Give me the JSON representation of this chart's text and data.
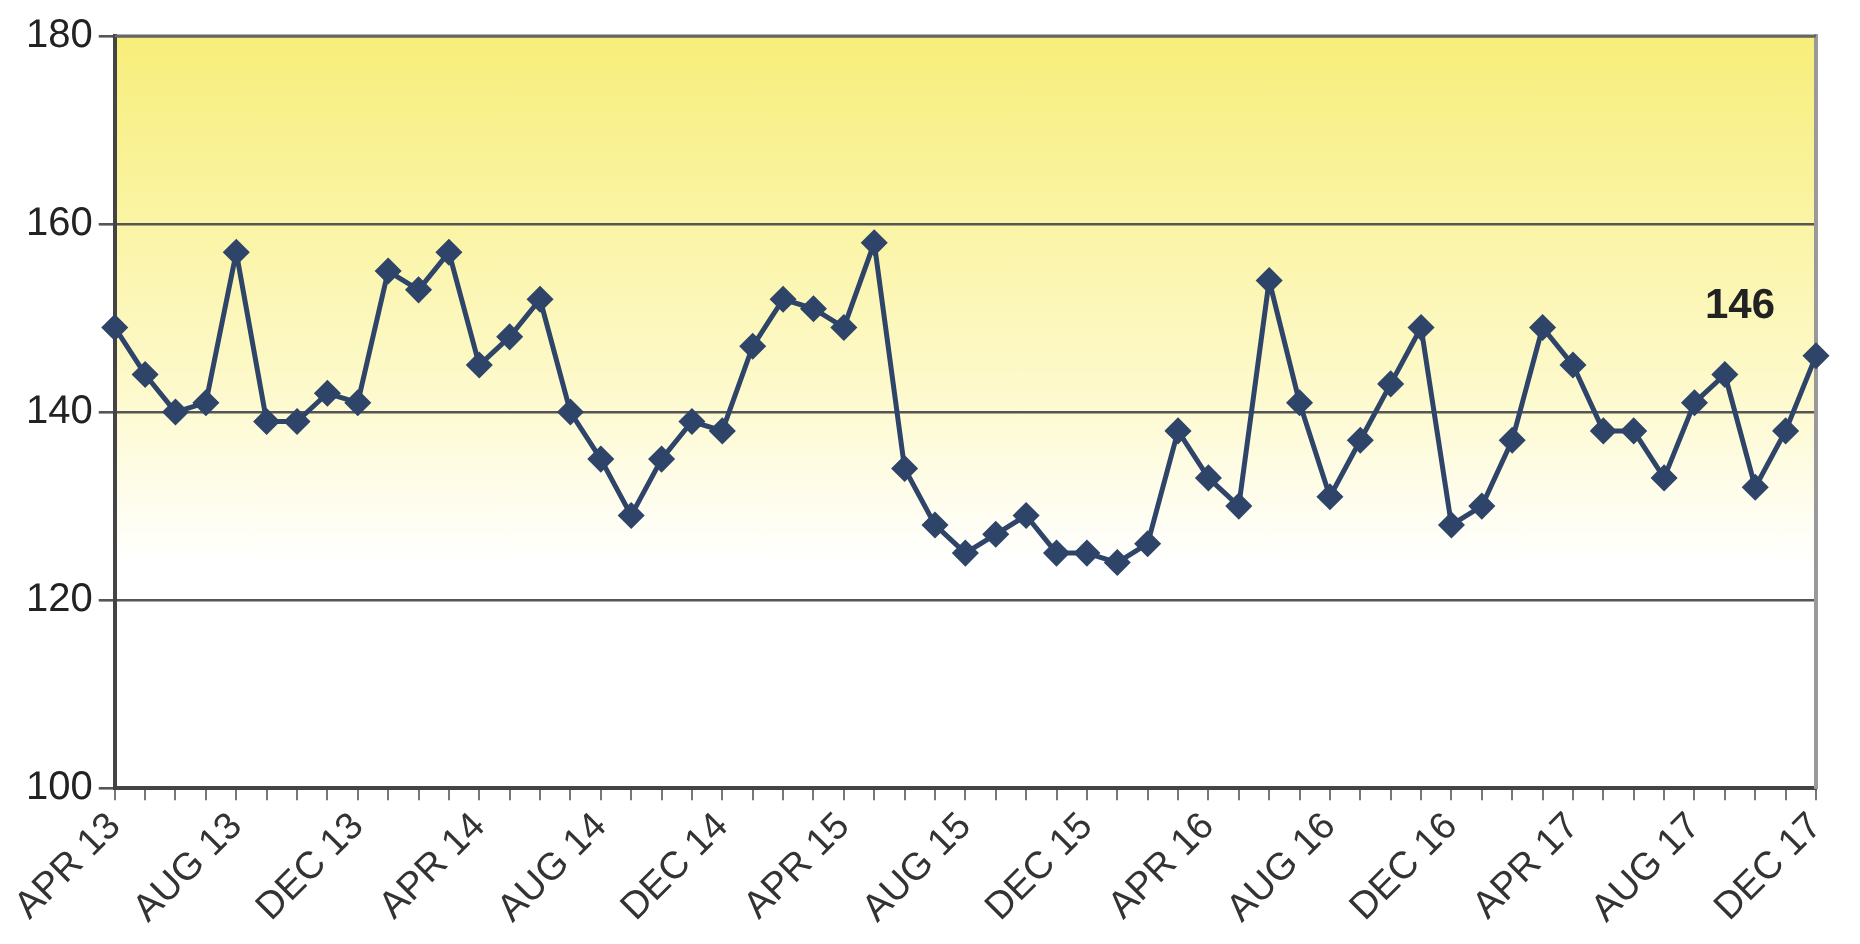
{
  "chart_data": {
    "type": "line",
    "categories": [
      "APR 13",
      null,
      null,
      null,
      "AUG 13",
      null,
      null,
      null,
      "DEC 13",
      null,
      null,
      null,
      "APR 14",
      null,
      null,
      null,
      "AUG 14",
      null,
      null,
      null,
      "DEC 14",
      null,
      null,
      null,
      "APR 15",
      null,
      null,
      null,
      "AUG 15",
      null,
      null,
      null,
      "DEC 15",
      null,
      null,
      null,
      "APR 16",
      null,
      null,
      null,
      "AUG 16",
      null,
      null,
      null,
      "DEC 16",
      null,
      null,
      null,
      "APR 17",
      null,
      null,
      null,
      "AUG 17",
      null,
      null,
      null,
      "DEC 17"
    ],
    "values": [
      149,
      144,
      140,
      141,
      157,
      139,
      139,
      142,
      141,
      155,
      153,
      157,
      145,
      148,
      152,
      140,
      135,
      129,
      135,
      139,
      138,
      147,
      152,
      151,
      149,
      158,
      134,
      128,
      125,
      127,
      129,
      125,
      125,
      124,
      126,
      138,
      133,
      130,
      154,
      141,
      131,
      137,
      143,
      149,
      128,
      130,
      137,
      149,
      145,
      138,
      138,
      133,
      141,
      144,
      132,
      138,
      146
    ],
    "color": "#2e4468",
    "marker": "diamond",
    "ylim": [
      100,
      180
    ],
    "yticks": [
      100,
      120,
      140,
      160,
      180
    ],
    "grid": "y",
    "legend": false,
    "annotations": [
      {
        "text": "146",
        "x": "DEC 17",
        "y": 146
      }
    ]
  }
}
